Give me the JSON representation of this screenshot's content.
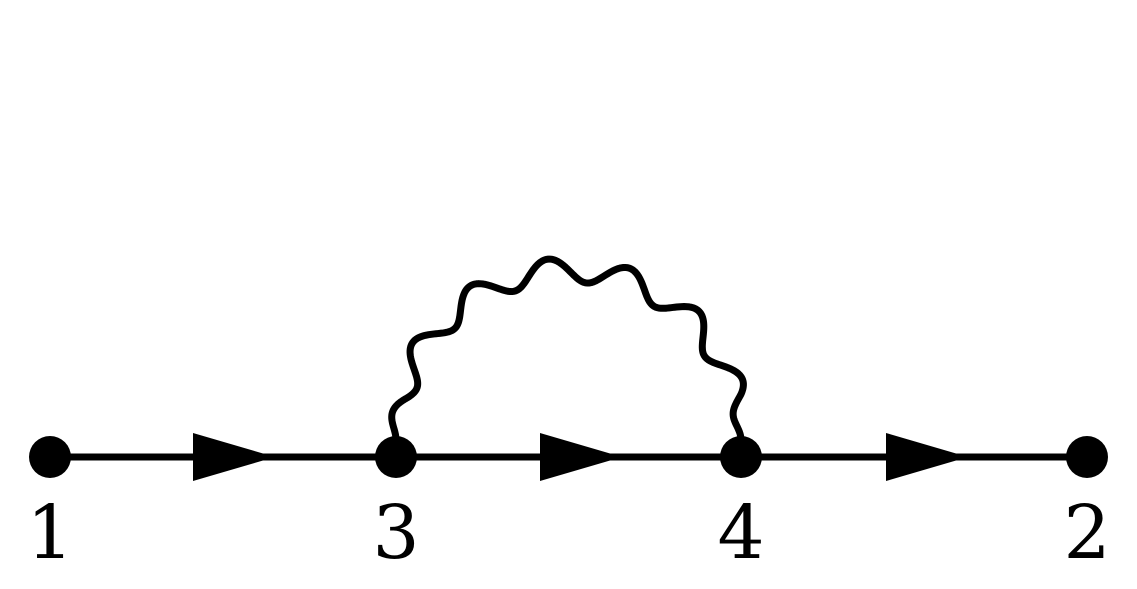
{
  "diagram": {
    "type": "feynman-self-energy",
    "colors": {
      "ink": "#000000",
      "background": "#ffffff"
    },
    "vertices": [
      {
        "id": "v1",
        "label": "1"
      },
      {
        "id": "v3",
        "label": "3"
      },
      {
        "id": "v4",
        "label": "4"
      },
      {
        "id": "v2",
        "label": "2"
      }
    ],
    "propagators": [
      {
        "from": "1",
        "to": "3",
        "kind": "fermion-arrow"
      },
      {
        "from": "3",
        "to": "4",
        "kind": "fermion-arrow"
      },
      {
        "from": "4",
        "to": "2",
        "kind": "fermion-arrow"
      },
      {
        "from": "3",
        "to": "4",
        "kind": "photon-wavy"
      }
    ]
  }
}
